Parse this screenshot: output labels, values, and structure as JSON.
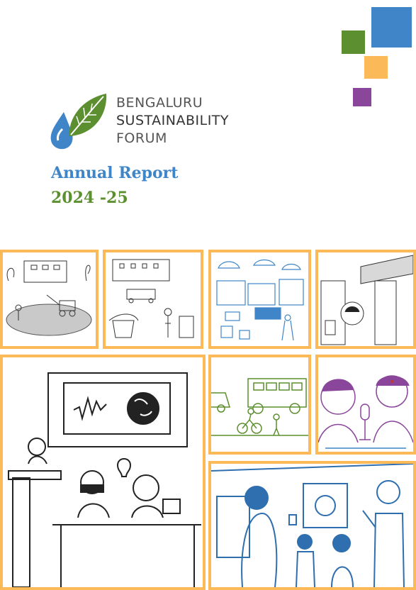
{
  "organization": {
    "line1": "BENGALURU",
    "line2": "SUSTAINABILITY",
    "line3": "FORUM"
  },
  "report": {
    "title": "Annual Report",
    "year": "2024 -25"
  },
  "colors": {
    "blue": "#3f85c7",
    "green": "#5c8f2f",
    "yellow": "#fbb957",
    "purple": "#8a469a",
    "panel_border": "#fbb957"
  }
}
